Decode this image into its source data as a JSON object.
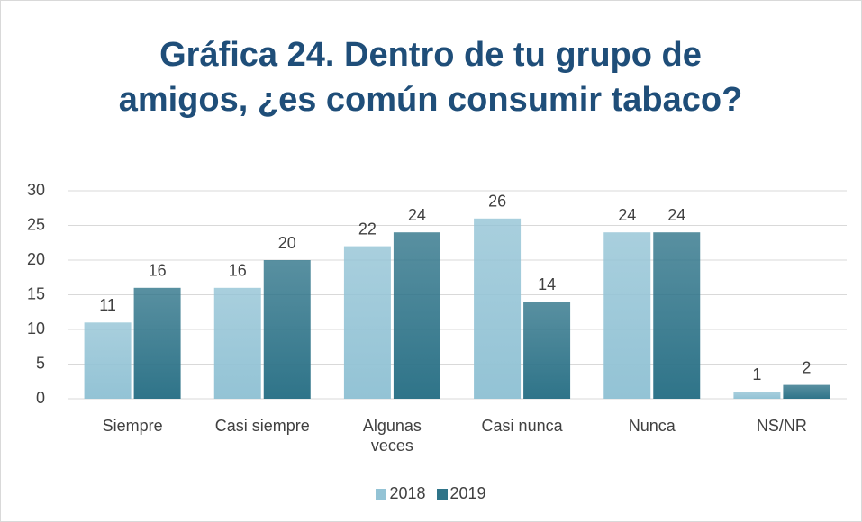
{
  "chart_data": {
    "type": "bar",
    "title": "Gráfica 24. Dentro de tu grupo de amigos, ¿es común consumir tabaco?",
    "categories": [
      "Siempre",
      "Casi siempre",
      "Algunas veces",
      "Casi nunca",
      "Nunca",
      "NS/NR"
    ],
    "series": [
      {
        "name": "2018",
        "color": "#93c3d5",
        "values": [
          11,
          16,
          22,
          26,
          24,
          1
        ]
      },
      {
        "name": "2019",
        "color": "#2f7489",
        "values": [
          16,
          20,
          24,
          14,
          24,
          2
        ]
      }
    ],
    "ylim": [
      0,
      30
    ],
    "yticks": [
      0,
      5,
      10,
      15,
      20,
      25,
      30
    ],
    "grid": true,
    "legend": "bottom"
  }
}
